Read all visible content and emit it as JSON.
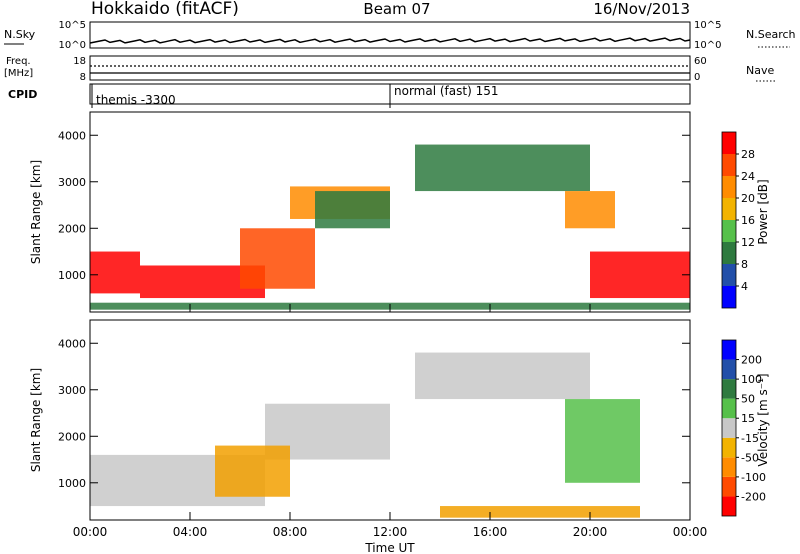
{
  "header": {
    "station": "Hokkaido (fitACF)",
    "beam": "Beam 07",
    "date": "16/Nov/2013"
  },
  "noise_panel": {
    "left_label": "N.Sky",
    "left_ticks": [
      "10^5",
      "10^0"
    ],
    "right_ticks": [
      "10^5",
      "10^0"
    ],
    "right_label": "N.Search"
  },
  "freq_panel": {
    "left_label_line1": "Freq.",
    "left_label_line2": "[MHz]",
    "left_ticks": [
      "18",
      "8"
    ],
    "right_ticks": [
      "60",
      "0"
    ],
    "right_label": "Nave"
  },
  "cpid_panel": {
    "label": "CPID",
    "segments": [
      {
        "text": "themis -3300",
        "start_hour": 0
      },
      {
        "text": "normal (fast) 151",
        "start_hour": 12
      }
    ]
  },
  "time_axis": {
    "title": "Time UT",
    "ticks": [
      "00:00",
      "04:00",
      "08:00",
      "12:00",
      "16:00",
      "20:00",
      "00:00"
    ]
  },
  "chart_data": [
    {
      "type": "heatmap",
      "panel": "power",
      "ylabel": "Slant Range [km]",
      "yticks": [
        1000,
        2000,
        3000,
        4000
      ],
      "ylim": [
        200,
        4500
      ],
      "xlim": [
        0,
        24
      ],
      "colorbar": {
        "label": "Power [dB]",
        "ticks": [
          "28",
          "24",
          "20",
          "16",
          "12",
          "8",
          "4"
        ],
        "colors": [
          "#0000ff",
          "#224fa9",
          "#2e7a3f",
          "#56c04a",
          "#f2b300",
          "#ff8c00",
          "#ff4a00",
          "#ff0000"
        ]
      },
      "regions": [
        {
          "x": [
            0,
            2
          ],
          "y": [
            600,
            1500
          ],
          "level": 28
        },
        {
          "x": [
            2,
            7
          ],
          "y": [
            500,
            1200
          ],
          "level": 28
        },
        {
          "x": [
            6,
            9
          ],
          "y": [
            700,
            2000
          ],
          "level": 24
        },
        {
          "x": [
            8,
            12
          ],
          "y": [
            2200,
            2900
          ],
          "level": 20
        },
        {
          "x": [
            9,
            12
          ],
          "y": [
            2000,
            2800
          ],
          "level": 12
        },
        {
          "x": [
            13,
            20
          ],
          "y": [
            2800,
            3800
          ],
          "level": 12
        },
        {
          "x": [
            19,
            21
          ],
          "y": [
            2000,
            2800
          ],
          "level": 20
        },
        {
          "x": [
            20,
            24
          ],
          "y": [
            500,
            1500
          ],
          "level": 28
        },
        {
          "x": [
            0,
            24
          ],
          "y": [
            250,
            400
          ],
          "level": 12
        }
      ]
    },
    {
      "type": "heatmap",
      "panel": "velocity",
      "ylabel": "Slant Range [km]",
      "yticks": [
        1000,
        2000,
        3000,
        4000
      ],
      "ylim": [
        200,
        4500
      ],
      "xlim": [
        0,
        24
      ],
      "colorbar": {
        "label": "Velocity [m s⁻¹]",
        "ticks": [
          "200",
          "100",
          "50",
          "15",
          "-15",
          "-50",
          "-100",
          "-200"
        ],
        "colors": [
          "#ff0000",
          "#ff4a00",
          "#ff8c00",
          "#f2b300",
          "#c8c8c8",
          "#56c04a",
          "#2e7a3f",
          "#224fa9",
          "#0000ff"
        ]
      },
      "regions": [
        {
          "x": [
            0,
            7
          ],
          "y": [
            500,
            1600
          ],
          "level": 0
        },
        {
          "x": [
            7,
            12
          ],
          "y": [
            1500,
            2700
          ],
          "level": 0
        },
        {
          "x": [
            13,
            20
          ],
          "y": [
            2800,
            3800
          ],
          "level": 0
        },
        {
          "x": [
            19,
            22
          ],
          "y": [
            1000,
            2800
          ],
          "level": 30
        },
        {
          "x": [
            5,
            8
          ],
          "y": [
            700,
            1800
          ],
          "level": -30
        },
        {
          "x": [
            14,
            22
          ],
          "y": [
            250,
            500
          ],
          "level": -30
        }
      ]
    }
  ]
}
